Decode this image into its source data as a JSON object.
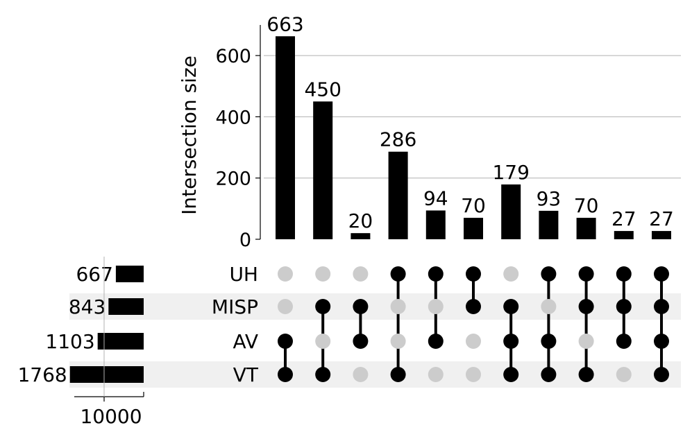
{
  "chart_data": {
    "type": "bar",
    "ylabel": "Intersection size",
    "ylim": [
      0,
      700
    ],
    "yticks": [
      0,
      200,
      400,
      600
    ],
    "grid": true,
    "sets": [
      "UH",
      "MISP",
      "AV",
      "VT"
    ],
    "set_sizes": [
      667,
      843,
      1103,
      1768
    ],
    "set_size_axis": {
      "ticks": [
        "10000"
      ],
      "tick_values": [
        10000
      ],
      "max": 10000
    },
    "intersections": [
      {
        "members": [
          "AV",
          "VT"
        ],
        "value": 663
      },
      {
        "members": [
          "MISP",
          "VT"
        ],
        "value": 450
      },
      {
        "members": [
          "MISP",
          "AV"
        ],
        "value": 20
      },
      {
        "members": [
          "UH",
          "VT"
        ],
        "value": 286
      },
      {
        "members": [
          "UH",
          "AV"
        ],
        "value": 94
      },
      {
        "members": [
          "UH",
          "MISP"
        ],
        "value": 70
      },
      {
        "members": [
          "MISP",
          "AV",
          "VT"
        ],
        "value": 179
      },
      {
        "members": [
          "UH",
          "AV",
          "VT"
        ],
        "value": 93
      },
      {
        "members": [
          "UH",
          "MISP",
          "VT"
        ],
        "value": 70
      },
      {
        "members": [
          "UH",
          "MISP",
          "AV"
        ],
        "value": 27
      },
      {
        "members": [
          "UH",
          "MISP",
          "AV",
          "VT"
        ],
        "value": 27
      }
    ],
    "colors": {
      "bar": "#000000",
      "active_dot": "#000000",
      "inactive_dot": "#cccccc",
      "stripe": "#f0f0f0",
      "grid": "#b0b0b0"
    }
  }
}
